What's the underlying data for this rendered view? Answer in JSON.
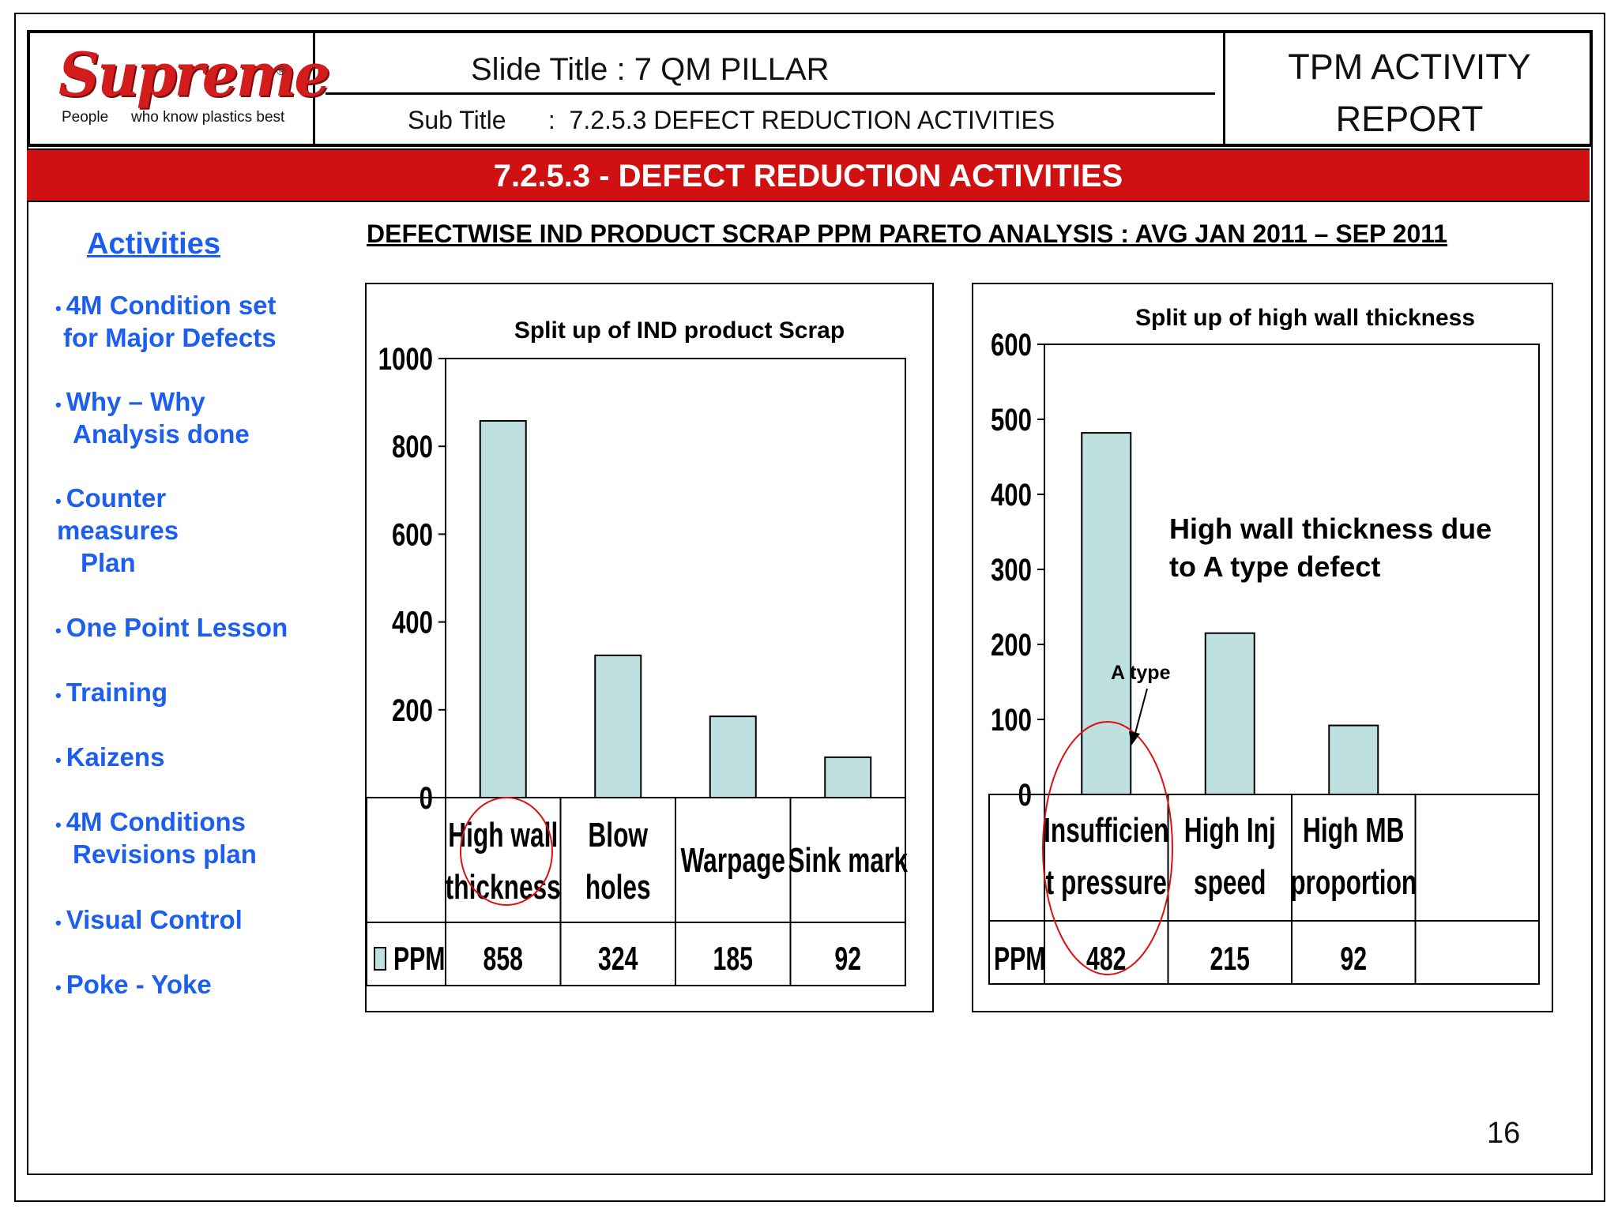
{
  "header": {
    "logo": {
      "word": "Supreme",
      "reg": "®",
      "tag_people": "People",
      "tag_rest": "who know plastics best"
    },
    "slide_title": "Slide Title :   7  QM PILLAR",
    "sub_title": "Sub Title      :  7.2.5.3 DEFECT REDUCTION ACTIVITIES",
    "report_line1": "TPM ACTIVITY",
    "report_line2": "REPORT"
  },
  "banner": "7.2.5.3 - DEFECT REDUCTION ACTIVITIES",
  "activities": {
    "title": "Activities",
    "items": [
      [
        "4M Condition set",
        "for Major Defects"
      ],
      [
        "Why – Why",
        "Analysis done"
      ],
      [
        "Counter",
        "measures",
        "Plan"
      ],
      [
        "One Point Lesson"
      ],
      [
        "Training"
      ],
      [
        "Kaizens"
      ],
      [
        "4M Conditions",
        "Revisions plan"
      ],
      [
        "Visual Control"
      ],
      [
        "Poke - Yoke"
      ]
    ]
  },
  "analysis_title": "DEFECTWISE IND PRODUCT SCRAP PPM PARETO ANALYSIS :  AVG  JAN 2011 – SEP 2011",
  "colors": {
    "bar": "#bfe0e0",
    "bar_stroke": "#000000",
    "highlight": "#dd1111",
    "accent_blue": "#1c5ff0",
    "banner_red": "#cf1111"
  },
  "chart_data": [
    {
      "type": "bar",
      "title": "Split up of IND product Scrap",
      "categories": [
        [
          "High wall",
          "thickness"
        ],
        [
          "Blow",
          "holes"
        ],
        [
          "Warpage"
        ],
        [
          "Sink mark"
        ]
      ],
      "series": [
        {
          "name": "PPM",
          "values": [
            858,
            324,
            185,
            92
          ]
        }
      ],
      "yticks": [
        0,
        200,
        400,
        600,
        800,
        1000
      ],
      "ylim": [
        0,
        1000
      ],
      "grid": false,
      "legend": "data-table",
      "highlighted_category": "High wall thickness"
    },
    {
      "type": "bar",
      "title": "Split up of high wall thickness",
      "categories": [
        [
          "Insufficien",
          "t pressure"
        ],
        [
          "High Inj",
          "speed"
        ],
        [
          "High MB",
          "proportion"
        ],
        [
          ""
        ]
      ],
      "series": [
        {
          "name": "PPM",
          "values": [
            482,
            215,
            92,
            null
          ]
        }
      ],
      "yticks": [
        0,
        100,
        200,
        300,
        400,
        500,
        600
      ],
      "ylim": [
        0,
        600
      ],
      "grid": false,
      "legend": "data-table",
      "highlighted_category": "Insufficient pressure",
      "annotation": [
        "High wall thickness due",
        "to A type defect"
      ],
      "arrow_label": "A type"
    }
  ],
  "page_number": "16"
}
